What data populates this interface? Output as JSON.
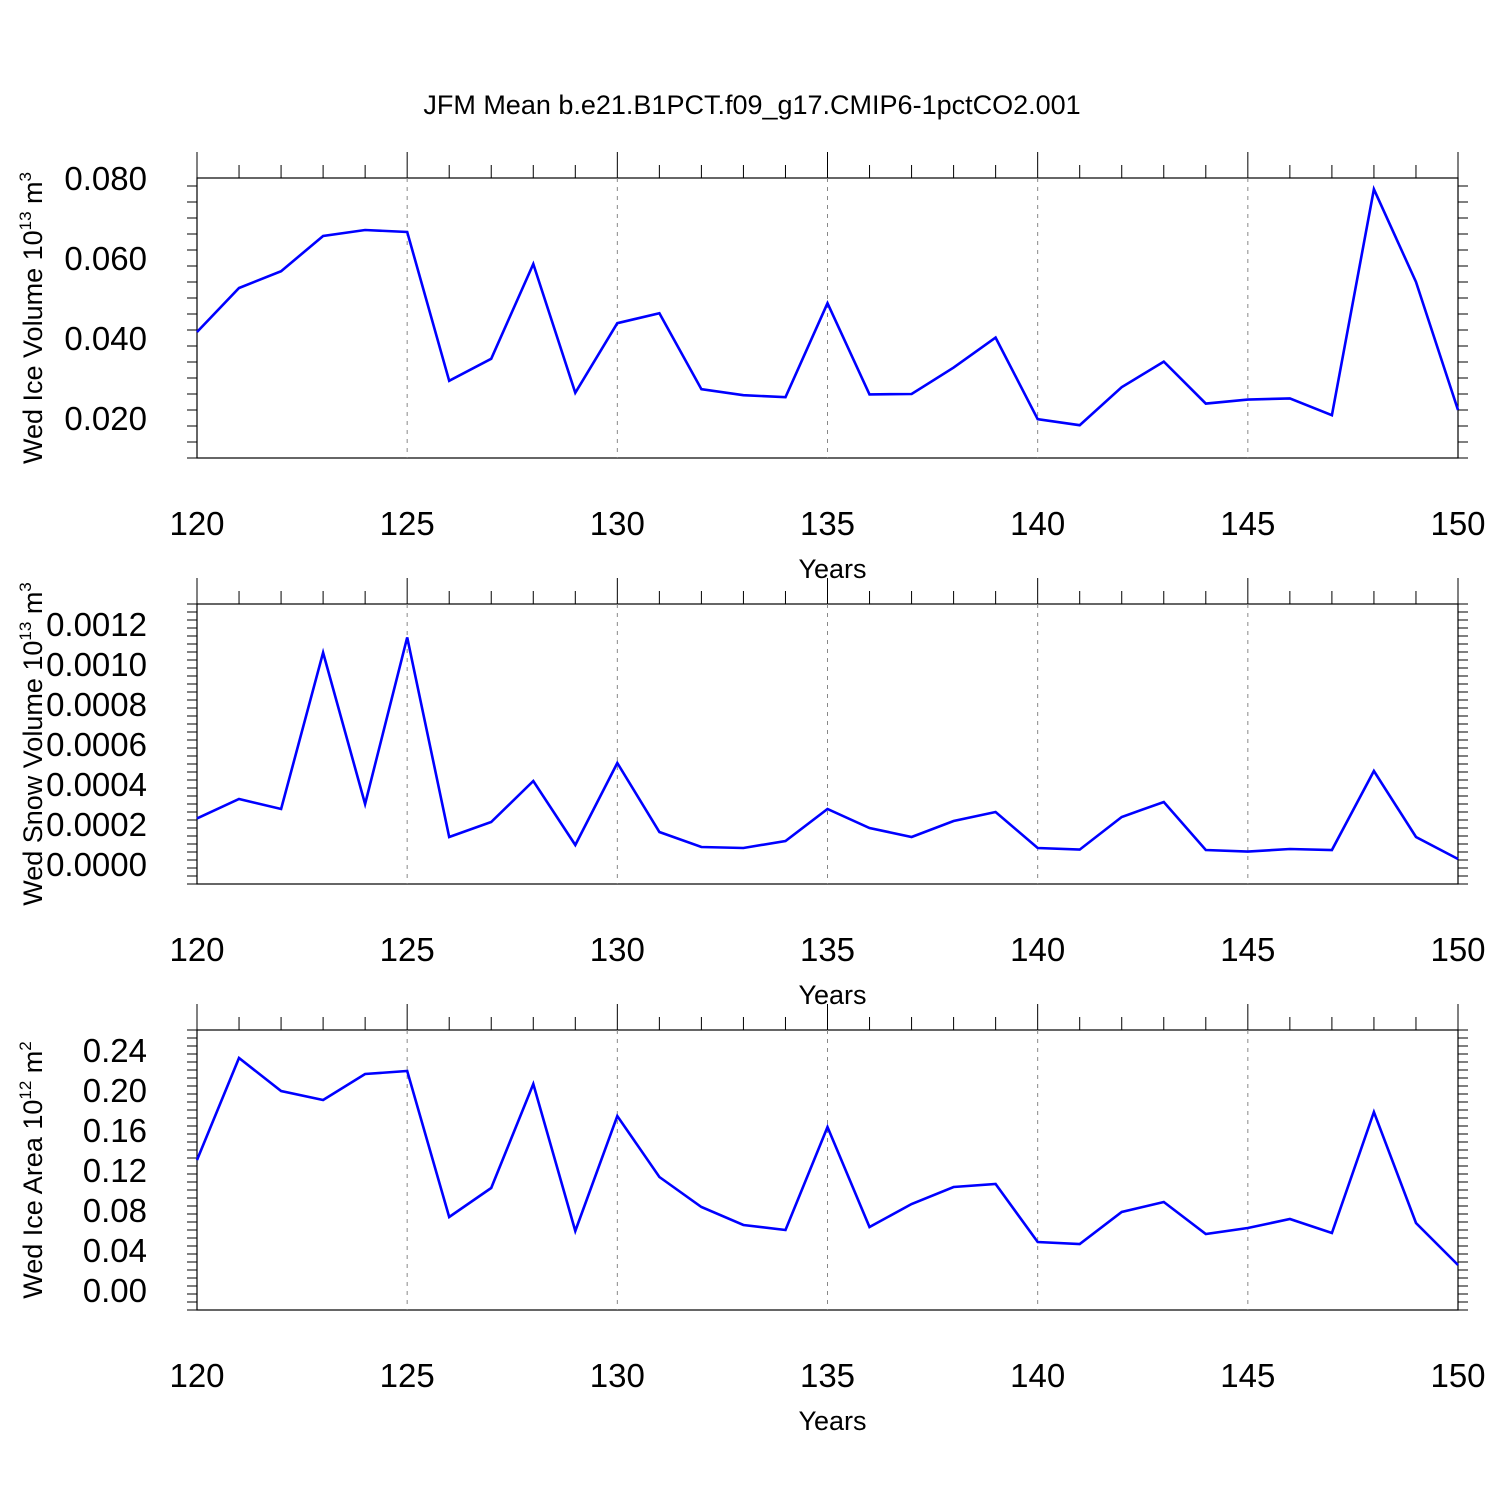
{
  "title": "JFM Mean b.e21.B1PCT.f09_g17.CMIP6-1pctCO2.001",
  "line_color": "#0000ff",
  "chart_data": [
    {
      "type": "line",
      "xlabel": "Years",
      "ylabel": {
        "text": "Wed Ice Volume 10",
        "sup": "13",
        "unit": " m",
        "unit_sup": "3"
      },
      "xlim": [
        120,
        150
      ],
      "ylim": [
        0.01,
        0.08
      ],
      "yticks": [
        "0.020",
        "0.040",
        "0.060",
        "0.080"
      ],
      "ytick_values": [
        0.02,
        0.04,
        0.06,
        0.08
      ],
      "xticks": [
        120,
        125,
        130,
        135,
        140,
        145,
        150
      ],
      "grid": "dashed vertical lines at x major ticks",
      "x": [
        120,
        121,
        122,
        123,
        124,
        125,
        126,
        127,
        128,
        129,
        130,
        131,
        132,
        133,
        134,
        135,
        136,
        137,
        138,
        139,
        140,
        141,
        142,
        143,
        144,
        145,
        146,
        147,
        148,
        149,
        150
      ],
      "values": [
        0.0415,
        0.0525,
        0.0567,
        0.0655,
        0.067,
        0.0665,
        0.0293,
        0.0348,
        0.0585,
        0.0263,
        0.0437,
        0.0462,
        0.0272,
        0.0257,
        0.0252,
        0.0487,
        0.0259,
        0.026,
        0.0326,
        0.0401,
        0.0197,
        0.0182,
        0.0277,
        0.0341,
        0.0236,
        0.0246,
        0.0249,
        0.0207,
        0.0772,
        0.054,
        0.022
      ]
    },
    {
      "type": "line",
      "xlabel": "Years",
      "ylabel": {
        "text": "Wed Snow Volume 10",
        "sup": "13",
        "unit": " m",
        "unit_sup": "3"
      },
      "xlim": [
        120,
        150
      ],
      "ylim": [
        -0.0001,
        0.0013
      ],
      "yticks": [
        "0.0000",
        "0.0002",
        "0.0004",
        "0.0006",
        "0.0008",
        "0.0010",
        "0.0012"
      ],
      "ytick_values": [
        0.0,
        0.0002,
        0.0004,
        0.0006,
        0.0008,
        0.001,
        0.0012
      ],
      "xticks": [
        120,
        125,
        130,
        135,
        140,
        145,
        150
      ],
      "grid": "dashed vertical lines at x major ticks",
      "x": [
        120,
        121,
        122,
        123,
        124,
        125,
        126,
        127,
        128,
        129,
        130,
        131,
        132,
        133,
        134,
        135,
        136,
        137,
        138,
        139,
        140,
        141,
        142,
        143,
        144,
        145,
        146,
        147,
        148,
        149,
        150
      ],
      "values": [
        0.000228,
        0.000325,
        0.000275,
        0.001057,
        0.0003,
        0.001133,
        0.000135,
        0.00021,
        0.000415,
        9.5e-05,
        0.000505,
        0.00016,
        8.5e-05,
        8e-05,
        0.000115,
        0.000275,
        0.00018,
        0.000135,
        0.000215,
        0.00026,
        8e-05,
        7.2e-05,
        0.000235,
        0.00031,
        7e-05,
        6.2e-05,
        7.5e-05,
        7e-05,
        0.000465,
        0.000135,
        2.5e-05
      ]
    },
    {
      "type": "line",
      "xlabel": "Years",
      "ylabel": {
        "text": "Wed Ice Area 10",
        "sup": "12",
        "unit": " m",
        "unit_sup": "2"
      },
      "xlim": [
        120,
        150
      ],
      "ylim": [
        -0.02,
        0.26
      ],
      "yticks": [
        "0.00",
        "0.04",
        "0.08",
        "0.12",
        "0.16",
        "0.20",
        "0.24"
      ],
      "ytick_values": [
        0.0,
        0.04,
        0.08,
        0.12,
        0.16,
        0.2,
        0.24
      ],
      "xticks": [
        120,
        125,
        130,
        135,
        140,
        145,
        150
      ],
      "grid": "dashed vertical lines at x major ticks",
      "x": [
        120,
        121,
        122,
        123,
        124,
        125,
        126,
        127,
        128,
        129,
        130,
        131,
        132,
        133,
        134,
        135,
        136,
        137,
        138,
        139,
        140,
        141,
        142,
        143,
        144,
        145,
        146,
        147,
        148,
        149,
        150
      ],
      "values": [
        0.13,
        0.232,
        0.199,
        0.19,
        0.216,
        0.219,
        0.073,
        0.102,
        0.206,
        0.059,
        0.174,
        0.113,
        0.083,
        0.065,
        0.06,
        0.163,
        0.063,
        0.086,
        0.103,
        0.106,
        0.048,
        0.046,
        0.078,
        0.088,
        0.056,
        0.062,
        0.071,
        0.057,
        0.178,
        0.067,
        0.025
      ]
    }
  ]
}
